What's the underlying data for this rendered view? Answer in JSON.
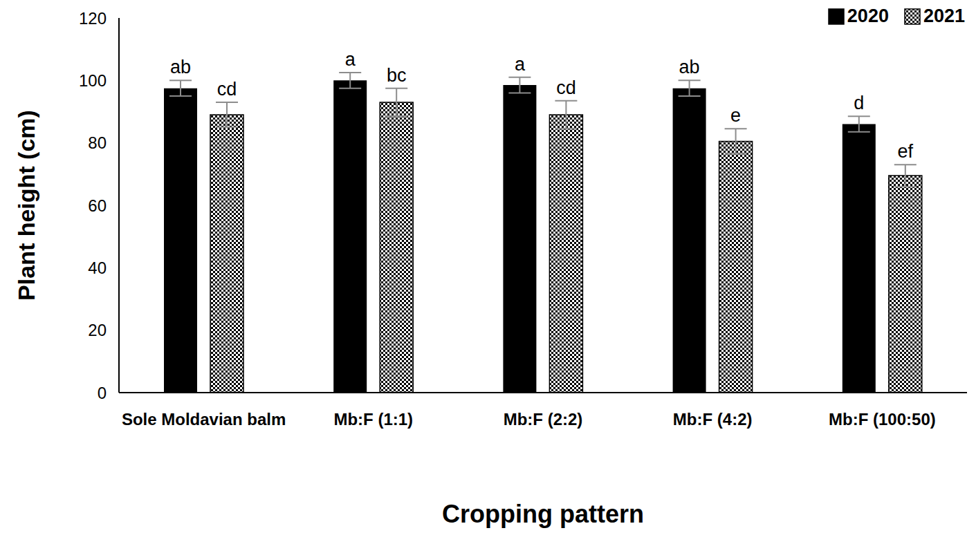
{
  "chart_data": {
    "type": "bar",
    "categories": [
      "Sole Moldavian balm",
      "Mb:F (1:1)",
      "Mb:F (2:2)",
      "Mb:F (4:2)",
      "Mb:F (100:50)"
    ],
    "series": [
      {
        "name": "2020",
        "color": "#000000",
        "values": [
          97.5,
          100,
          98.5,
          97.5,
          86
        ],
        "errors": [
          2.5,
          2.5,
          2.5,
          2.5,
          2.5
        ],
        "labels": [
          "ab",
          "a",
          "a",
          "ab",
          "d"
        ]
      },
      {
        "name": "2021",
        "color": "#000000",
        "values": [
          89,
          93,
          89,
          80.5,
          69.5
        ],
        "errors": [
          4,
          4.5,
          4.5,
          4,
          3.5
        ],
        "labels": [
          "cd",
          "bc",
          "cd",
          "e",
          "ef"
        ]
      }
    ],
    "xlabel": "Cropping pattern",
    "ylabel": "Plant height (cm)",
    "ylim": [
      0,
      120
    ],
    "yticks": [
      0,
      20,
      40,
      60,
      80,
      100,
      120
    ],
    "grid": false,
    "legend": "top right"
  }
}
